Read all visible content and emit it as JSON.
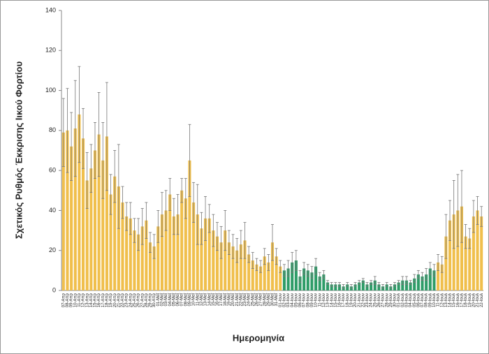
{
  "chart_data": {
    "type": "bar",
    "y_label": "Σχετικός Ρυθμός Έκκρισης Ιικού Φορτίου",
    "x_label": "Ημερομηνία",
    "categories": [
      "07-Απρ",
      "08-Απρ",
      "09-Απρ",
      "10-Απρ",
      "11-Απρ",
      "12-Απρ",
      "13-Απρ",
      "14-Απρ",
      "15-Απρ",
      "16-Απρ",
      "17-Απρ",
      "18-Απρ",
      "19-Απρ",
      "20-Απρ",
      "21-Απρ",
      "22-Απρ",
      "23-Απρ",
      "24-Απρ",
      "25-Απρ",
      "26-Απρ",
      "27-Απρ",
      "28-Απρ",
      "29-Απρ",
      "30-Απρ",
      "01-Μαΐ",
      "02-Μαΐ",
      "03-Μαΐ",
      "04-Μαΐ",
      "05-Μαΐ",
      "06-Μαΐ",
      "07-Μαΐ",
      "08-Μαΐ",
      "09-Μαΐ",
      "10-Μαΐ",
      "11-Μαΐ",
      "12-Μαΐ",
      "13-Μαΐ",
      "14-Μαΐ",
      "15-Μαΐ",
      "16-Μαΐ",
      "17-Μαΐ",
      "18-Μαΐ",
      "19-Μαΐ",
      "20-Μαΐ",
      "21-Μαΐ",
      "22-Μαΐ",
      "23-Μαΐ",
      "24-Μαΐ",
      "25-Μαΐ",
      "26-Μαΐ",
      "27-Μαΐ",
      "28-Μαΐ",
      "29-Μαΐ",
      "30-Μαΐ",
      "31-Μαΐ",
      "01-Ιουν",
      "02-Ιουν",
      "03-Ιουν",
      "04-Ιουν",
      "05-Ιουν",
      "06-Ιουν",
      "07-Ιουν",
      "08-Ιουν",
      "09-Ιουν",
      "10-Ιουν",
      "11-Ιουν",
      "12-Ιουν",
      "13-Ιουν",
      "14-Ιουν",
      "15-Ιουν",
      "16-Ιουν",
      "17-Ιουν",
      "18-Ιουν",
      "19-Ιουν",
      "20-Ιουν",
      "21-Ιουν",
      "22-Ιουν",
      "23-Ιουν",
      "24-Ιουν",
      "25-Ιουν",
      "26-Ιουν",
      "27-Ιουν",
      "28-Ιουν",
      "29-Ιουν",
      "30-Ιουν",
      "01-Ιουλ",
      "02-Ιουλ",
      "03-Ιουλ",
      "04-Ιουλ",
      "05-Ιουλ",
      "06-Ιουλ",
      "07-Ιουλ",
      "08-Ιουλ",
      "09-Ιουλ",
      "10-Ιουλ",
      "11-Ιουλ",
      "12-Ιουλ",
      "13-Ιουλ",
      "14-Ιουλ",
      "15-Ιουλ",
      "16-Ιουλ",
      "17-Ιουλ",
      "18-Ιουλ",
      "19-Ιουλ",
      "20-Ιουλ",
      "21-Ιουλ",
      "22-Ιουλ"
    ],
    "values": [
      79,
      80,
      72,
      81,
      88,
      76,
      55,
      61,
      70,
      78,
      65,
      77,
      48,
      57,
      52,
      44,
      37,
      36,
      30,
      28,
      32,
      35,
      24,
      22,
      32,
      38,
      40,
      48,
      37,
      38,
      50,
      46,
      65,
      44,
      38,
      31,
      36,
      36,
      30,
      27,
      24,
      30,
      24,
      22,
      20,
      23,
      25,
      18,
      15,
      13,
      12,
      17,
      14,
      24,
      17,
      12,
      10,
      11,
      14,
      15,
      7,
      11,
      10,
      9,
      12,
      7,
      8,
      4,
      3,
      3,
      3,
      2,
      3,
      2,
      3,
      4,
      5,
      3,
      4,
      5,
      3,
      2,
      3,
      2,
      3,
      4,
      5,
      5,
      4,
      6,
      8,
      7,
      8,
      11,
      10,
      14,
      13,
      27,
      35,
      38,
      40,
      42,
      27,
      26,
      37,
      40,
      37
    ],
    "errors": [
      17,
      21,
      17,
      24,
      24,
      15,
      14,
      12,
      14,
      21,
      19,
      27,
      10,
      13,
      21,
      8,
      7,
      8,
      6,
      8,
      9,
      9,
      5,
      6,
      8,
      11,
      10,
      8,
      9,
      10,
      6,
      10,
      18,
      10,
      15,
      8,
      11,
      7,
      8,
      7,
      8,
      10,
      6,
      6,
      6,
      7,
      9,
      4,
      4,
      3,
      3,
      4,
      4,
      9,
      4,
      3,
      3,
      4,
      5,
      5,
      3,
      3,
      3,
      3,
      4,
      2,
      2,
      1,
      1,
      1,
      1,
      1,
      1,
      1,
      1,
      1,
      1,
      1,
      1,
      2,
      1,
      1,
      1,
      1,
      1,
      1,
      2,
      2,
      1,
      2,
      2,
      2,
      3,
      3,
      3,
      4,
      4,
      11,
      10,
      17,
      18,
      18,
      6,
      5,
      8,
      7,
      5
    ],
    "colors": [
      "#f0bf4c",
      "#f0bf4c",
      "#f0bf4c",
      "#f0bf4c",
      "#f0bf4c",
      "#f0bf4c",
      "#f0bf4c",
      "#f0bf4c",
      "#f0bf4c",
      "#f0bf4c",
      "#f0bf4c",
      "#f0bf4c",
      "#f0bf4c",
      "#f0bf4c",
      "#f0bf4c",
      "#f0bf4c",
      "#f0bf4c",
      "#f0bf4c",
      "#f0bf4c",
      "#f0bf4c",
      "#f0bf4c",
      "#f0bf4c",
      "#f0bf4c",
      "#f0bf4c",
      "#f0bf4c",
      "#f0bf4c",
      "#f0bf4c",
      "#f0bf4c",
      "#f0bf4c",
      "#f0bf4c",
      "#f0bf4c",
      "#f0bf4c",
      "#f0bf4c",
      "#f0bf4c",
      "#f0bf4c",
      "#f0bf4c",
      "#f0bf4c",
      "#f0bf4c",
      "#f0bf4c",
      "#f0bf4c",
      "#f0bf4c",
      "#f0bf4c",
      "#f0bf4c",
      "#f0bf4c",
      "#f0bf4c",
      "#f0bf4c",
      "#f0bf4c",
      "#f0bf4c",
      "#f0bf4c",
      "#f0bf4c",
      "#f0bf4c",
      "#f0bf4c",
      "#f0bf4c",
      "#f0bf4c",
      "#f0bf4c",
      "#f0bf4c",
      "#2e9c68",
      "#2e9c68",
      "#2e9c68",
      "#2e9c68",
      "#2e9c68",
      "#2e9c68",
      "#2e9c68",
      "#2e9c68",
      "#2e9c68",
      "#2e9c68",
      "#2e9c68",
      "#2e9c68",
      "#2e9c68",
      "#2e9c68",
      "#2e9c68",
      "#2e9c68",
      "#2e9c68",
      "#2e9c68",
      "#2e9c68",
      "#2e9c68",
      "#2e9c68",
      "#2e9c68",
      "#2e9c68",
      "#2e9c68",
      "#2e9c68",
      "#2e9c68",
      "#2e9c68",
      "#2e9c68",
      "#2e9c68",
      "#2e9c68",
      "#2e9c68",
      "#2e9c68",
      "#2e9c68",
      "#2e9c68",
      "#2e9c68",
      "#2e9c68",
      "#2e9c68",
      "#2e9c68",
      "#2e9c68",
      "#f0bf4c",
      "#f0bf4c",
      "#f0bf4c",
      "#f0bf4c",
      "#f0bf4c",
      "#f0bf4c",
      "#f0bf4c",
      "#f0bf4c",
      "#f0bf4c",
      "#f0bf4c",
      "#f0bf4c",
      "#f0bf4c"
    ],
    "error_color": "#777777",
    "ylim": [
      0,
      140
    ],
    "yticks": [
      0,
      20,
      40,
      60,
      80,
      100,
      120,
      140
    ],
    "grid": false
  }
}
